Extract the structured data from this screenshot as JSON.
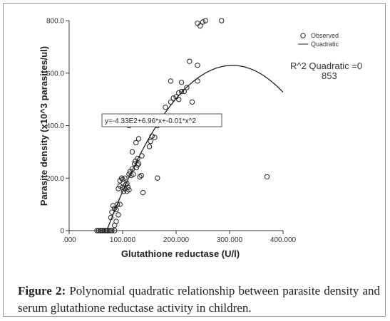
{
  "chart_data": {
    "type": "scatter",
    "xlabel": "Glutathione reductase (U/l)",
    "ylabel": "Parasite density (x10^3 parasites/ul)",
    "xlim": [
      0,
      400
    ],
    "ylim": [
      0,
      800
    ],
    "x_ticks": [
      0,
      100,
      200,
      300,
      400
    ],
    "x_tick_labels": [
      ".000",
      "100.000",
      "200.000",
      "300.000",
      "400.000"
    ],
    "y_ticks": [
      0,
      200,
      400,
      600,
      800
    ],
    "y_tick_labels": [
      "0",
      "200.0",
      "400.0",
      "600.0",
      "800.0"
    ],
    "legend": {
      "position": "top-right",
      "entries": [
        {
          "label": "Observed",
          "marker": "open-circle"
        },
        {
          "label": "Quadratic",
          "marker": "line"
        }
      ]
    },
    "r2_label_line1": "R^2 Quadratic =0",
    "r2_label_line2": "853",
    "equation_label": "y=-4.33E2+6.96*x+-0.01*x^2",
    "fit": {
      "a": -433,
      "b": 6.96,
      "c": -0.0114
    },
    "observed": {
      "name": "Observed",
      "points": [
        [
          52,
          0
        ],
        [
          55,
          0
        ],
        [
          58,
          0
        ],
        [
          60,
          0
        ],
        [
          62,
          0
        ],
        [
          65,
          0
        ],
        [
          68,
          0
        ],
        [
          70,
          0
        ],
        [
          72,
          0
        ],
        [
          75,
          0
        ],
        [
          78,
          0
        ],
        [
          80,
          0
        ],
        [
          85,
          0
        ],
        [
          78,
          50
        ],
        [
          80,
          70
        ],
        [
          82,
          95
        ],
        [
          85,
          85
        ],
        [
          88,
          80
        ],
        [
          90,
          100
        ],
        [
          92,
          60
        ],
        [
          95,
          100
        ],
        [
          85,
          20
        ],
        [
          88,
          35
        ],
        [
          92,
          160
        ],
        [
          95,
          170
        ],
        [
          98,
          200
        ],
        [
          100,
          165
        ],
        [
          102,
          150
        ],
        [
          104,
          160
        ],
        [
          106,
          175
        ],
        [
          108,
          150
        ],
        [
          110,
          165
        ],
        [
          112,
          155
        ],
        [
          95,
          190
        ],
        [
          100,
          195
        ],
        [
          104,
          200
        ],
        [
          108,
          180
        ],
        [
          112,
          215
        ],
        [
          114,
          225
        ],
        [
          116,
          210
        ],
        [
          118,
          235
        ],
        [
          120,
          215
        ],
        [
          122,
          255
        ],
        [
          124,
          265
        ],
        [
          126,
          240
        ],
        [
          128,
          250
        ],
        [
          130,
          255
        ],
        [
          132,
          205
        ],
        [
          135,
          210
        ],
        [
          138,
          145
        ],
        [
          128,
          275
        ],
        [
          136,
          285
        ],
        [
          112,
          400
        ],
        [
          118,
          300
        ],
        [
          125,
          335
        ],
        [
          130,
          350
        ],
        [
          150,
          320
        ],
        [
          152,
          340
        ],
        [
          155,
          360
        ],
        [
          160,
          355
        ],
        [
          145,
          420
        ],
        [
          155,
          430
        ],
        [
          165,
          400
        ],
        [
          170,
          410
        ],
        [
          180,
          470
        ],
        [
          190,
          490
        ],
        [
          195,
          505
        ],
        [
          200,
          510
        ],
        [
          205,
          500
        ],
        [
          205,
          525
        ],
        [
          210,
          530
        ],
        [
          215,
          530
        ],
        [
          220,
          545
        ],
        [
          230,
          490
        ],
        [
          240,
          570
        ],
        [
          190,
          570
        ],
        [
          210,
          565
        ],
        [
          225,
          645
        ],
        [
          240,
          630
        ],
        [
          240,
          790
        ],
        [
          245,
          780
        ],
        [
          250,
          795
        ],
        [
          255,
          800
        ],
        [
          285,
          800
        ],
        [
          165,
          200
        ],
        [
          370,
          205
        ]
      ]
    }
  },
  "caption": {
    "label": "Figure 2:",
    "text": "Polynomial quadratic relationship between parasite density and serum glutathione reductase activity in children."
  }
}
